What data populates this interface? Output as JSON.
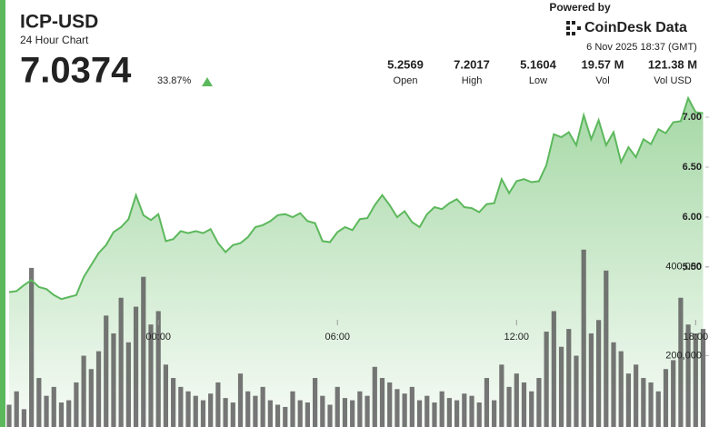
{
  "chart_data": {
    "type": "line",
    "title": "ICP-USD",
    "subtitle": "24 Hour Chart",
    "last_price": "7.0374",
    "change": "33.87%",
    "stats": [
      {
        "value": "5.2569",
        "label": "Open"
      },
      {
        "value": "7.2017",
        "label": "High"
      },
      {
        "value": "5.1604",
        "label": "Low"
      },
      {
        "value": "19.57 M",
        "label": "Vol"
      },
      {
        "value": "121.38 M",
        "label": "Vol USD"
      }
    ],
    "brand": {
      "powered": "Powered by",
      "name": "CoinDesk Data",
      "timestamp": "6 Nov 2025 18:37 (GMT)"
    },
    "categories": [
      null,
      null,
      null,
      null,
      null,
      null,
      null,
      null,
      null,
      null,
      null,
      null,
      null,
      null,
      null,
      null,
      null,
      null,
      null,
      null,
      "00:00",
      null,
      null,
      null,
      null,
      null,
      null,
      null,
      null,
      null,
      null,
      null,
      null,
      null,
      null,
      null,
      null,
      null,
      null,
      null,
      null,
      null,
      null,
      null,
      "06:00",
      null,
      null,
      null,
      null,
      null,
      null,
      null,
      null,
      null,
      null,
      null,
      null,
      null,
      null,
      null,
      null,
      null,
      null,
      null,
      null,
      null,
      null,
      null,
      "12:00",
      null,
      null,
      null,
      null,
      null,
      null,
      null,
      null,
      null,
      null,
      null,
      null,
      null,
      null,
      null,
      null,
      null,
      null,
      null,
      null,
      null,
      null,
      null,
      "18:00",
      null
    ],
    "values": [
      5.25,
      5.26,
      5.32,
      5.37,
      5.3,
      5.28,
      5.22,
      5.18,
      5.2,
      5.22,
      5.4,
      5.52,
      5.64,
      5.72,
      5.85,
      5.9,
      5.98,
      6.22,
      6.02,
      5.97,
      6.03,
      5.76,
      5.78,
      5.86,
      5.84,
      5.86,
      5.84,
      5.88,
      5.74,
      5.65,
      5.72,
      5.74,
      5.8,
      5.9,
      5.92,
      5.96,
      6.02,
      6.03,
      6.0,
      6.04,
      5.96,
      5.94,
      5.76,
      5.75,
      5.85,
      5.9,
      5.87,
      5.98,
      5.99,
      6.12,
      6.22,
      6.12,
      6.0,
      6.06,
      5.95,
      5.9,
      6.03,
      6.1,
      6.08,
      6.14,
      6.18,
      6.1,
      6.09,
      6.05,
      6.13,
      6.14,
      6.38,
      6.24,
      6.36,
      6.38,
      6.35,
      6.36,
      6.52,
      6.83,
      6.8,
      6.85,
      6.72,
      7.02,
      6.78,
      6.97,
      6.72,
      6.85,
      6.55,
      6.7,
      6.6,
      6.78,
      6.73,
      6.88,
      6.84,
      6.95,
      6.96,
      7.19,
      7.05,
      7.04
    ],
    "color": "#5cb85c",
    "ylim": [
      3.9,
      7.2
    ],
    "yticks": [
      {
        "value": 5.5,
        "label": "5.50"
      },
      {
        "value": 6,
        "label": "6.00"
      },
      {
        "value": 6.5,
        "label": "6.50"
      },
      {
        "value": 7,
        "label": "7.00"
      }
    ],
    "volumes": [
      90000,
      120000,
      80000,
      397000,
      150000,
      110000,
      130000,
      95000,
      100000,
      140000,
      200000,
      170000,
      210000,
      290000,
      250000,
      330000,
      230000,
      310000,
      377000,
      270000,
      300000,
      180000,
      150000,
      130000,
      120000,
      110000,
      100000,
      115000,
      140000,
      105000,
      95000,
      160000,
      120000,
      110000,
      130000,
      100000,
      90000,
      85000,
      120000,
      100000,
      95000,
      150000,
      110000,
      90000,
      130000,
      105000,
      100000,
      120000,
      110000,
      175000,
      150000,
      140000,
      125000,
      115000,
      130000,
      100000,
      110000,
      95000,
      120000,
      105000,
      100000,
      115000,
      110000,
      95000,
      150000,
      100000,
      180000,
      130000,
      160000,
      140000,
      120000,
      150000,
      254000,
      300000,
      220000,
      260000,
      200000,
      438000,
      250000,
      280000,
      391000,
      230000,
      210000,
      160000,
      180000,
      150000,
      140000,
      120000,
      170000,
      190000,
      330000,
      270000,
      250000,
      260000
    ],
    "volume_color": "#5e5e5e",
    "y2lim": [
      40000,
      780000
    ],
    "y2ticks": [
      {
        "value": 200000,
        "label": "200,000"
      },
      {
        "value": 400000,
        "label": "400,000"
      }
    ]
  }
}
